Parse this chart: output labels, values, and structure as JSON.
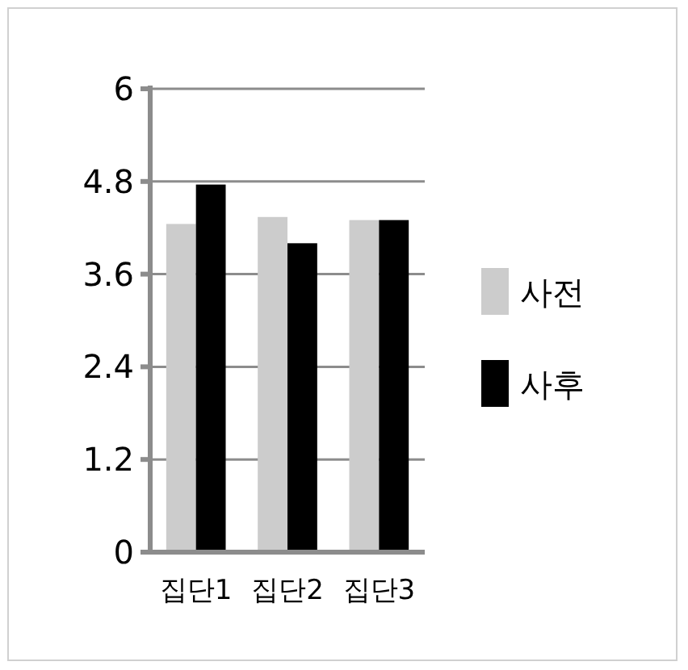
{
  "chart_data": {
    "type": "bar",
    "categories": [
      "집단1",
      "집단2",
      "집단3"
    ],
    "series": [
      {
        "name": "사전",
        "color": "#cccccc",
        "values": [
          4.25,
          4.34,
          4.3
        ]
      },
      {
        "name": "사후",
        "color": "#000000",
        "values": [
          4.76,
          4.0,
          4.3
        ]
      }
    ],
    "ylim": [
      0,
      6
    ],
    "yticks": [
      0,
      1.2,
      2.4,
      3.6,
      4.8,
      6
    ],
    "grid": "y",
    "legend": "right"
  }
}
